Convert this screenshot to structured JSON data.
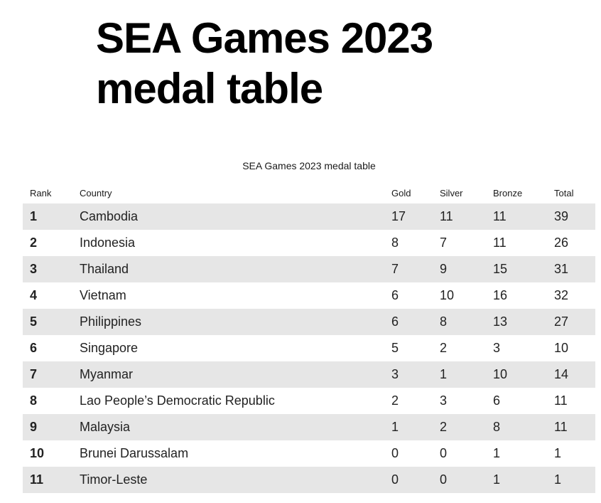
{
  "headline": "SEA Games 2023 medal table",
  "table": {
    "caption": "SEA Games 2023 medal table",
    "headers": {
      "rank": "Rank",
      "country": "Country",
      "gold": "Gold",
      "silver": "Silver",
      "bronze": "Bronze",
      "total": "Total"
    },
    "rows": [
      {
        "rank": "1",
        "country": "Cambodia",
        "gold": "17",
        "silver": "11",
        "bronze": "11",
        "total": "39"
      },
      {
        "rank": "2",
        "country": "Indonesia",
        "gold": "8",
        "silver": "7",
        "bronze": "11",
        "total": "26"
      },
      {
        "rank": "3",
        "country": "Thailand",
        "gold": "7",
        "silver": "9",
        "bronze": "15",
        "total": "31"
      },
      {
        "rank": "4",
        "country": "Vietnam",
        "gold": "6",
        "silver": "10",
        "bronze": "16",
        "total": "32"
      },
      {
        "rank": "5",
        "country": "Philippines",
        "gold": "6",
        "silver": "8",
        "bronze": "13",
        "total": "27"
      },
      {
        "rank": "6",
        "country": "Singapore",
        "gold": "5",
        "silver": "2",
        "bronze": "3",
        "total": "10"
      },
      {
        "rank": "7",
        "country": "Myanmar",
        "gold": "3",
        "silver": "1",
        "bronze": "10",
        "total": "14"
      },
      {
        "rank": "8",
        "country": "Lao People’s Democratic Republic",
        "gold": "2",
        "silver": "3",
        "bronze": "6",
        "total": "11"
      },
      {
        "rank": "9",
        "country": "Malaysia",
        "gold": "1",
        "silver": "2",
        "bronze": "8",
        "total": "11"
      },
      {
        "rank": "10",
        "country": "Brunei Darussalam",
        "gold": "0",
        "silver": "0",
        "bronze": "1",
        "total": "1"
      },
      {
        "rank": "11",
        "country": "Timor-Leste",
        "gold": "0",
        "silver": "0",
        "bronze": "1",
        "total": "1"
      }
    ]
  }
}
